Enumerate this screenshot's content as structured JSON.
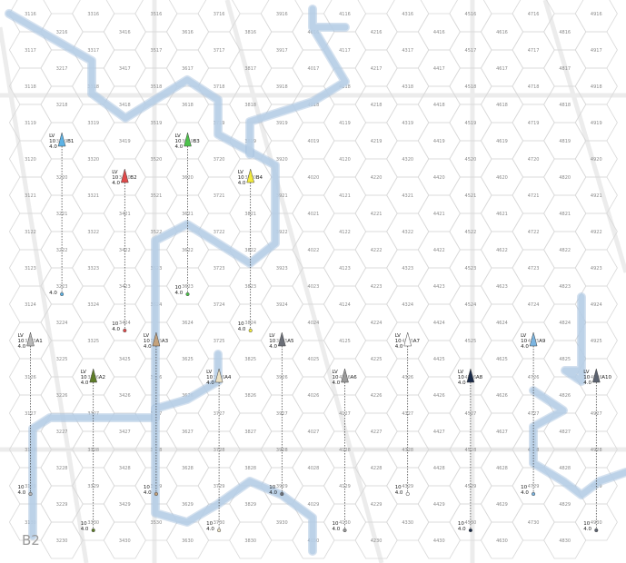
{
  "map": {
    "sheet_label": "B2",
    "first_col": 31,
    "last_col": 49,
    "first_row": 16,
    "last_row": 30,
    "colors": {
      "background": "#ffffff",
      "hex_line": "#d9d9d9",
      "hex_number": "#8a8a8a",
      "river": "#b7cfe6",
      "river_edge": "#9fbddb",
      "sheet_seam": "#ececec",
      "drop_line": "#333333"
    }
  },
  "units": [
    {
      "id": "B1",
      "lv": "LV",
      "num1": "10",
      "num2": "4.0",
      "color": "#5db3e6",
      "hex": "3219",
      "ground_hex": "3223",
      "ground_lines": [
        "",
        "4.0"
      ]
    },
    {
      "id": "B2",
      "lv": "LV",
      "num1": "10",
      "num2": "4.0",
      "color": "#e04a4a",
      "hex": "3420",
      "ground_hex": "3424",
      "ground_lines": [
        "10",
        "4.0"
      ]
    },
    {
      "id": "B3",
      "lv": "LV",
      "num1": "10",
      "num2": "4.0",
      "color": "#4cc24a",
      "hex": "3619",
      "ground_hex": "3623",
      "ground_lines": [
        "10",
        "4.0"
      ]
    },
    {
      "id": "B4",
      "lv": "LV",
      "num1": "10",
      "num2": "4.0",
      "color": "#f2ea3c",
      "hex": "3820",
      "ground_hex": "3824",
      "ground_lines": [
        "10",
        "4.0"
      ]
    },
    {
      "id": "A1",
      "lv": "LV",
      "num1": "10",
      "num2": "4.0",
      "color": "#b8b8b8",
      "hex": "3125",
      "ground_hex": "3129",
      "ground_lines": [
        "10",
        "4.0"
      ]
    },
    {
      "id": "A2",
      "lv": "LV",
      "num1": "10",
      "num2": "4.0",
      "color": "#5e7d28",
      "hex": "3326",
      "ground_hex": "3330",
      "ground_lines": [
        "10",
        "4.0"
      ]
    },
    {
      "id": "A3",
      "lv": "LV",
      "num1": "10",
      "num2": "4.0",
      "color": "#c4a27c",
      "hex": "3525",
      "ground_hex": "3529",
      "ground_lines": [
        "10",
        "4.0"
      ]
    },
    {
      "id": "A4",
      "lv": "LV",
      "num1": "10",
      "num2": "4.0",
      "color": "#ece2c4",
      "hex": "3726",
      "ground_hex": "3730",
      "ground_lines": [
        "10",
        "4.0"
      ]
    },
    {
      "id": "A5",
      "lv": "LV",
      "num1": "10",
      "num2": "4.0",
      "color": "#6b6f78",
      "hex": "3925",
      "ground_hex": "3929",
      "ground_lines": [
        "10",
        "4.0"
      ]
    },
    {
      "id": "A6",
      "lv": "LV",
      "num1": "10",
      "num2": "4.0",
      "color": "#9a9a9a",
      "hex": "4126",
      "ground_hex": "4130",
      "ground_lines": [
        "10",
        "4.0"
      ]
    },
    {
      "id": "A7",
      "lv": "LV",
      "num1": "10",
      "num2": "4.0",
      "color": "#ffffff",
      "hex": "4325",
      "ground_hex": "4329",
      "ground_lines": [
        "10",
        "4.0"
      ]
    },
    {
      "id": "A8",
      "lv": "LV",
      "num1": "10",
      "num2": "4.0",
      "color": "#1a2a48",
      "hex": "4526",
      "ground_hex": "4530",
      "ground_lines": [
        "10",
        "4.0"
      ]
    },
    {
      "id": "A9",
      "lv": "LV",
      "num1": "10",
      "num2": "4.0",
      "color": "#7ab4e0",
      "hex": "4725",
      "ground_hex": "4729",
      "ground_lines": [
        "10",
        "4.0"
      ]
    },
    {
      "id": "A10",
      "lv": "LV",
      "num1": "10",
      "num2": "4.0",
      "color": "#5b6270",
      "hex": "4926",
      "ground_hex": "4930",
      "ground_lines": [
        "10",
        "4.0"
      ]
    }
  ]
}
